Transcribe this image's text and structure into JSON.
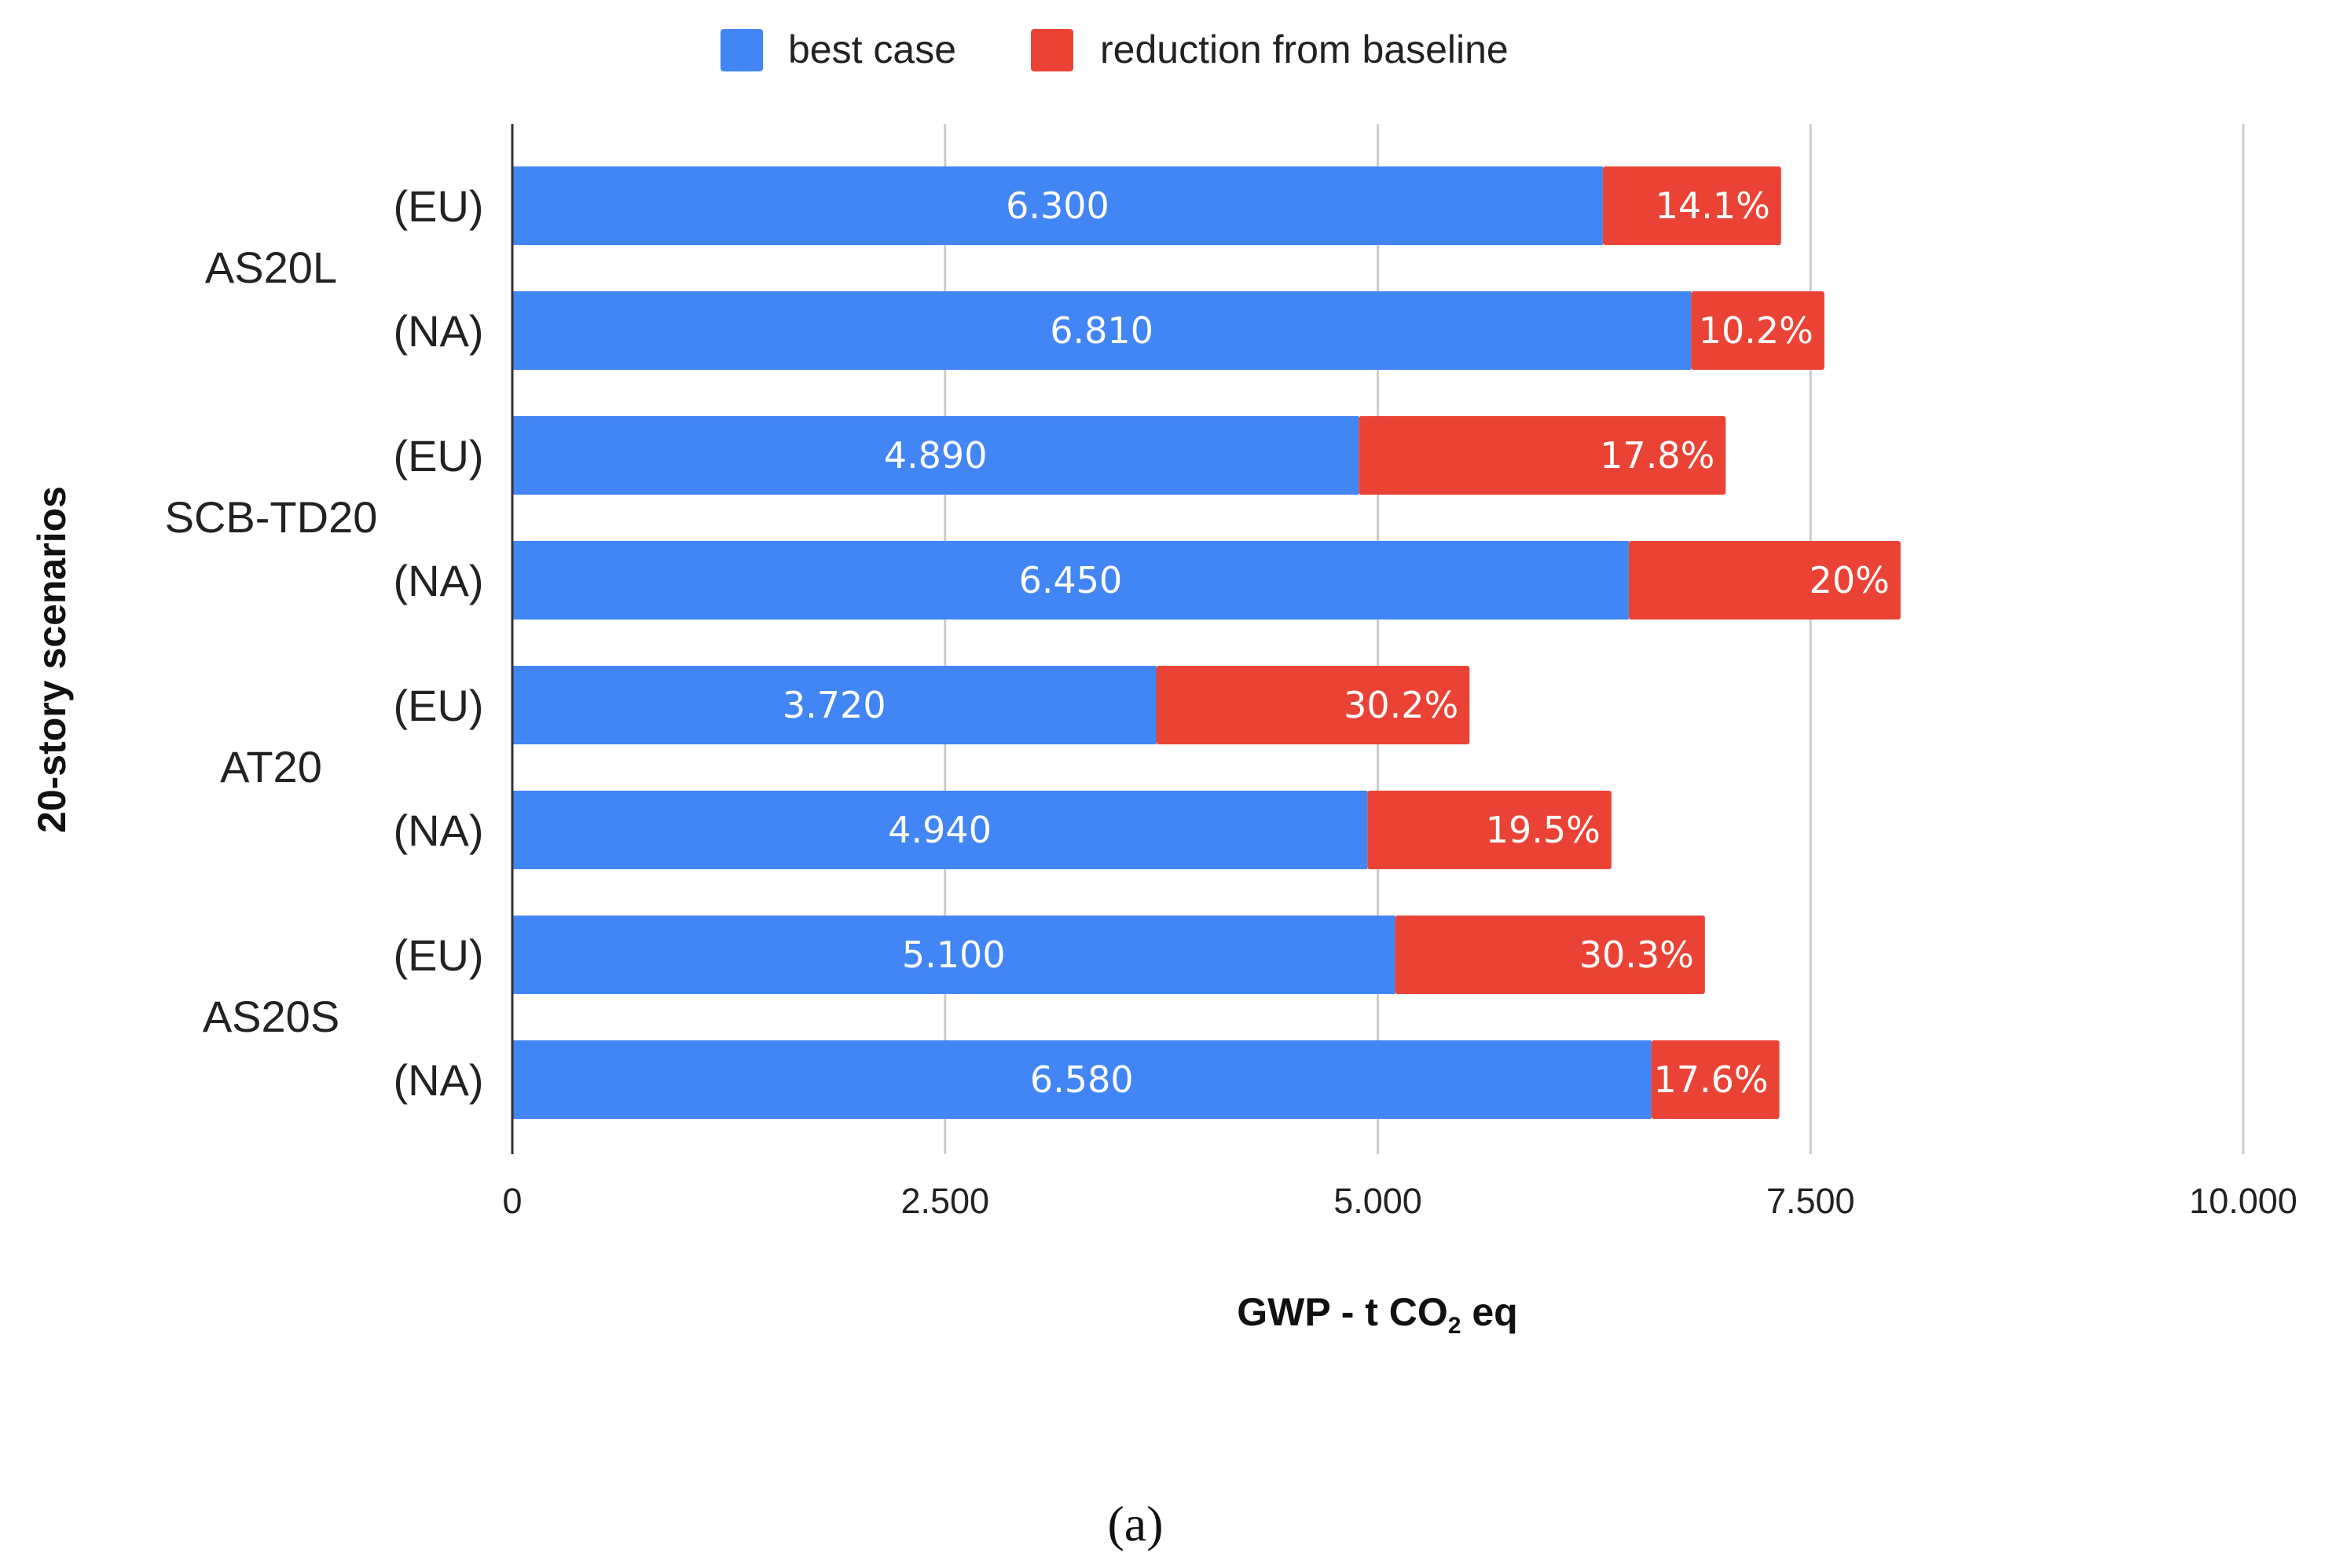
{
  "chart_data": {
    "type": "bar",
    "orientation": "horizontal",
    "stacked": true,
    "legend": [
      "best case",
      "reduction from baseline"
    ],
    "legend_position": "top",
    "colors": {
      "best": "#4285F4",
      "reduction": "#EA4335"
    },
    "ylabel": "20-story scenarios",
    "xlabel": {
      "prefix": "GWP - t CO",
      "subscript": "2",
      "suffix": " eq"
    },
    "xlim": [
      0,
      10000
    ],
    "x_ticks": [
      {
        "value": 0,
        "label": "0"
      },
      {
        "value": 2500,
        "label": "2.500"
      },
      {
        "value": 5000,
        "label": "5.000"
      },
      {
        "value": 7500,
        "label": "7.500"
      },
      {
        "value": 10000,
        "label": "10.000"
      }
    ],
    "grid": true,
    "groups": [
      {
        "label": "AS20L",
        "bars": [
          {
            "category": "(EU)",
            "best": 6300,
            "best_label": "6.300",
            "reduction_end": 7330,
            "reduction_label": "14.1%"
          },
          {
            "category": "(NA)",
            "best": 6810,
            "best_label": "6.810",
            "reduction_end": 7580,
            "reduction_label": "10.2%"
          }
        ]
      },
      {
        "label": "SCB-TD20",
        "bars": [
          {
            "category": "(EU)",
            "best": 4890,
            "best_label": "4.890",
            "reduction_end": 7010,
            "reduction_label": "17.8%"
          },
          {
            "category": "(NA)",
            "best": 6450,
            "best_label": "6.450",
            "reduction_end": 8020,
            "reduction_label": "20%"
          }
        ]
      },
      {
        "label": "AT20",
        "bars": [
          {
            "category": "(EU)",
            "best": 3720,
            "best_label": "3.720",
            "reduction_end": 5530,
            "reduction_label": "30.2%"
          },
          {
            "category": "(NA)",
            "best": 4940,
            "best_label": "4.940",
            "reduction_end": 6350,
            "reduction_label": "19.5%"
          }
        ]
      },
      {
        "label": "AS20S",
        "bars": [
          {
            "category": "(EU)",
            "best": 5100,
            "best_label": "5.100",
            "reduction_end": 6890,
            "reduction_label": "30.3%"
          },
          {
            "category": "(NA)",
            "best": 6580,
            "best_label": "6.580",
            "reduction_end": 7320,
            "reduction_label": "17.6%"
          }
        ]
      }
    ]
  },
  "caption": "(a)"
}
